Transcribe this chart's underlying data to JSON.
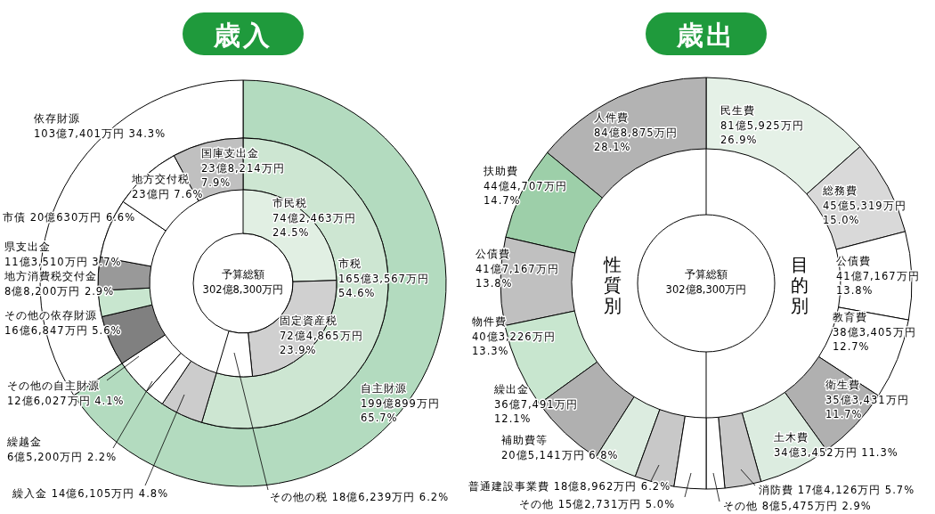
{
  "chart_data": [
    {
      "type": "donut",
      "title": "歳入",
      "annotations": [
        "予算総額 302億8,300万円"
      ],
      "categories": [
        "自主財源",
        "依存財源"
      ],
      "values": [
        65.7,
        34.3
      ],
      "colors": [
        "#b3dbbf",
        "#ffffff"
      ],
      "value_labels": [
        "199億899万円 65.7%",
        "103億7,401万円 34.3%"
      ]
    },
    {
      "type": "donut",
      "categories": [
        "市税",
        "繰入金",
        "繰越金",
        "その他の自主財源",
        "その他の依存財源",
        "地方消費税交付金",
        "県支出金",
        "市債",
        "地方交付税",
        "国庫支出金"
      ],
      "values": [
        54.6,
        4.8,
        2.2,
        4.1,
        5.6,
        2.9,
        3.7,
        6.6,
        7.6,
        7.9
      ],
      "colors": [
        "#cde6d2",
        "#cccccc",
        "#ffffff",
        "#ffffff",
        "#808080",
        "#c8e6cf",
        "#999999",
        "#ffffff",
        "#ffffff",
        "#c0c0c0"
      ],
      "value_labels": [
        "165億3,567万円 54.6%",
        "14億6,105万円 4.8%",
        "6億5,200万円 2.2%",
        "12億6,027万円 4.1%",
        "16億6,847万円 5.6%",
        "8億8,200万円 2.9%",
        "11億3,510万円 3.7%",
        "20億630万円 6.6%",
        "23億円 7.6%",
        "23億8,214万円 7.9%"
      ]
    },
    {
      "type": "donut",
      "categories": [
        "市民税",
        "固定資産税",
        "その他の税"
      ],
      "values": [
        24.5,
        23.9,
        6.2
      ],
      "colors": [
        "#e1efe3",
        "#d0d0d0",
        "#ffffff"
      ],
      "value_labels": [
        "74億2,463万円 24.5%",
        "72億4,865万円 23.9%",
        "18億6,239万円 6.2%"
      ]
    },
    {
      "type": "donut",
      "title": "歳出",
      "subtitle": "目的別",
      "annotations": [
        "予算総額 302億8,300万円"
      ],
      "categories": [
        "民生費",
        "総務費",
        "公債費",
        "教育費",
        "衛生費",
        "土木費",
        "消防費",
        "その他"
      ],
      "values": [
        26.9,
        15.0,
        13.8,
        12.7,
        11.7,
        11.3,
        5.7,
        2.9
      ],
      "colors": [
        "#e5f1e7",
        "#d9d9d9",
        "#ffffff",
        "#ffffff",
        "#b0b0b0",
        "#dcece0",
        "#c8c8c8",
        "#ffffff"
      ],
      "value_labels": [
        "81億5,925万円 26.9%",
        "45億5,319万円 15.0%",
        "41億7,167万円 13.8%",
        "38億3,405万円 12.7%",
        "35億3,431万円 11.7%",
        "34億3,452万円 11.3%",
        "17億4,126万円 5.7%",
        "8億5,475万円 2.9%"
      ]
    },
    {
      "type": "donut",
      "subtitle": "性質別",
      "categories": [
        "人件費",
        "扶助費",
        "公債費",
        "物件費",
        "繰出金",
        "補助費等",
        "普通建設事業費",
        "その他"
      ],
      "values": [
        28.1,
        14.7,
        13.8,
        13.3,
        12.1,
        6.8,
        6.2,
        5.0
      ],
      "colors": [
        "#b3b3b3",
        "#9dcfa9",
        "#c0c0c0",
        "#c8e6cf",
        "#b0b0b0",
        "#dcece0",
        "#c8c8c8",
        "#ffffff"
      ],
      "value_labels": [
        "84億8,875万円 28.1%",
        "44億4,707万円 14.7%",
        "41億7,167万円 13.8%",
        "40億3,226万円 13.3%",
        "36億7,491万円 12.1%",
        "20億5,141万円 6.8%",
        "18億8,962万円 6.2%",
        "15億2,731万円 5.0%"
      ]
    }
  ]
}
